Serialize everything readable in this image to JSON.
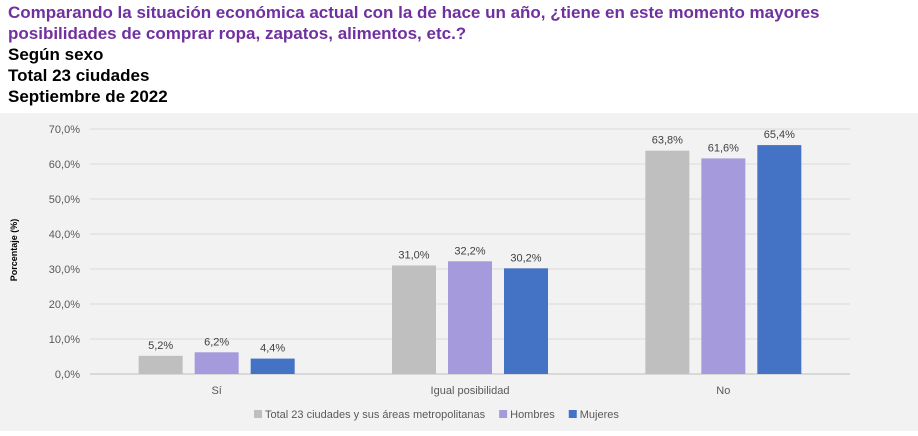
{
  "header": {
    "title": "Comparando la situación económica actual con la de hace un año, ¿tiene en este momento mayores posibilidades de comprar ropa, zapatos, alimentos, etc.?",
    "line1": "Según sexo",
    "line2": "Total 23 ciudades",
    "line3": "Septiembre de 2022"
  },
  "colors": {
    "title": "#7030a0",
    "panel_background": "#f2f2f2"
  },
  "chart_data": {
    "type": "bar",
    "title": "",
    "xlabel": "",
    "ylabel": "Porcentaje (%)",
    "ylim": [
      0,
      70
    ],
    "yticks": [
      0,
      10,
      20,
      30,
      40,
      50,
      60,
      70
    ],
    "ytick_labels": [
      "0,0%",
      "10,0%",
      "20,0%",
      "30,0%",
      "40,0%",
      "50,0%",
      "60,0%",
      "70,0%"
    ],
    "grid": true,
    "legend_position": "bottom",
    "categories": [
      "Sí",
      "Igual posibilidad",
      "No"
    ],
    "series": [
      {
        "name": "Total 23 ciudades y sus áreas metropolitanas",
        "color": "#bfbfbf",
        "values": [
          5.2,
          31.0,
          63.8
        ],
        "labels": [
          "5,2%",
          "31,0%",
          "63,8%"
        ]
      },
      {
        "name": "Hombres",
        "color": "#a59bdc",
        "values": [
          6.2,
          32.2,
          61.6
        ],
        "labels": [
          "6,2%",
          "32,2%",
          "61,6%"
        ]
      },
      {
        "name": "Mujeres",
        "color": "#4472c4",
        "values": [
          4.4,
          30.2,
          65.4
        ],
        "labels": [
          "4,4%",
          "30,2%",
          "65,4%"
        ]
      }
    ]
  }
}
